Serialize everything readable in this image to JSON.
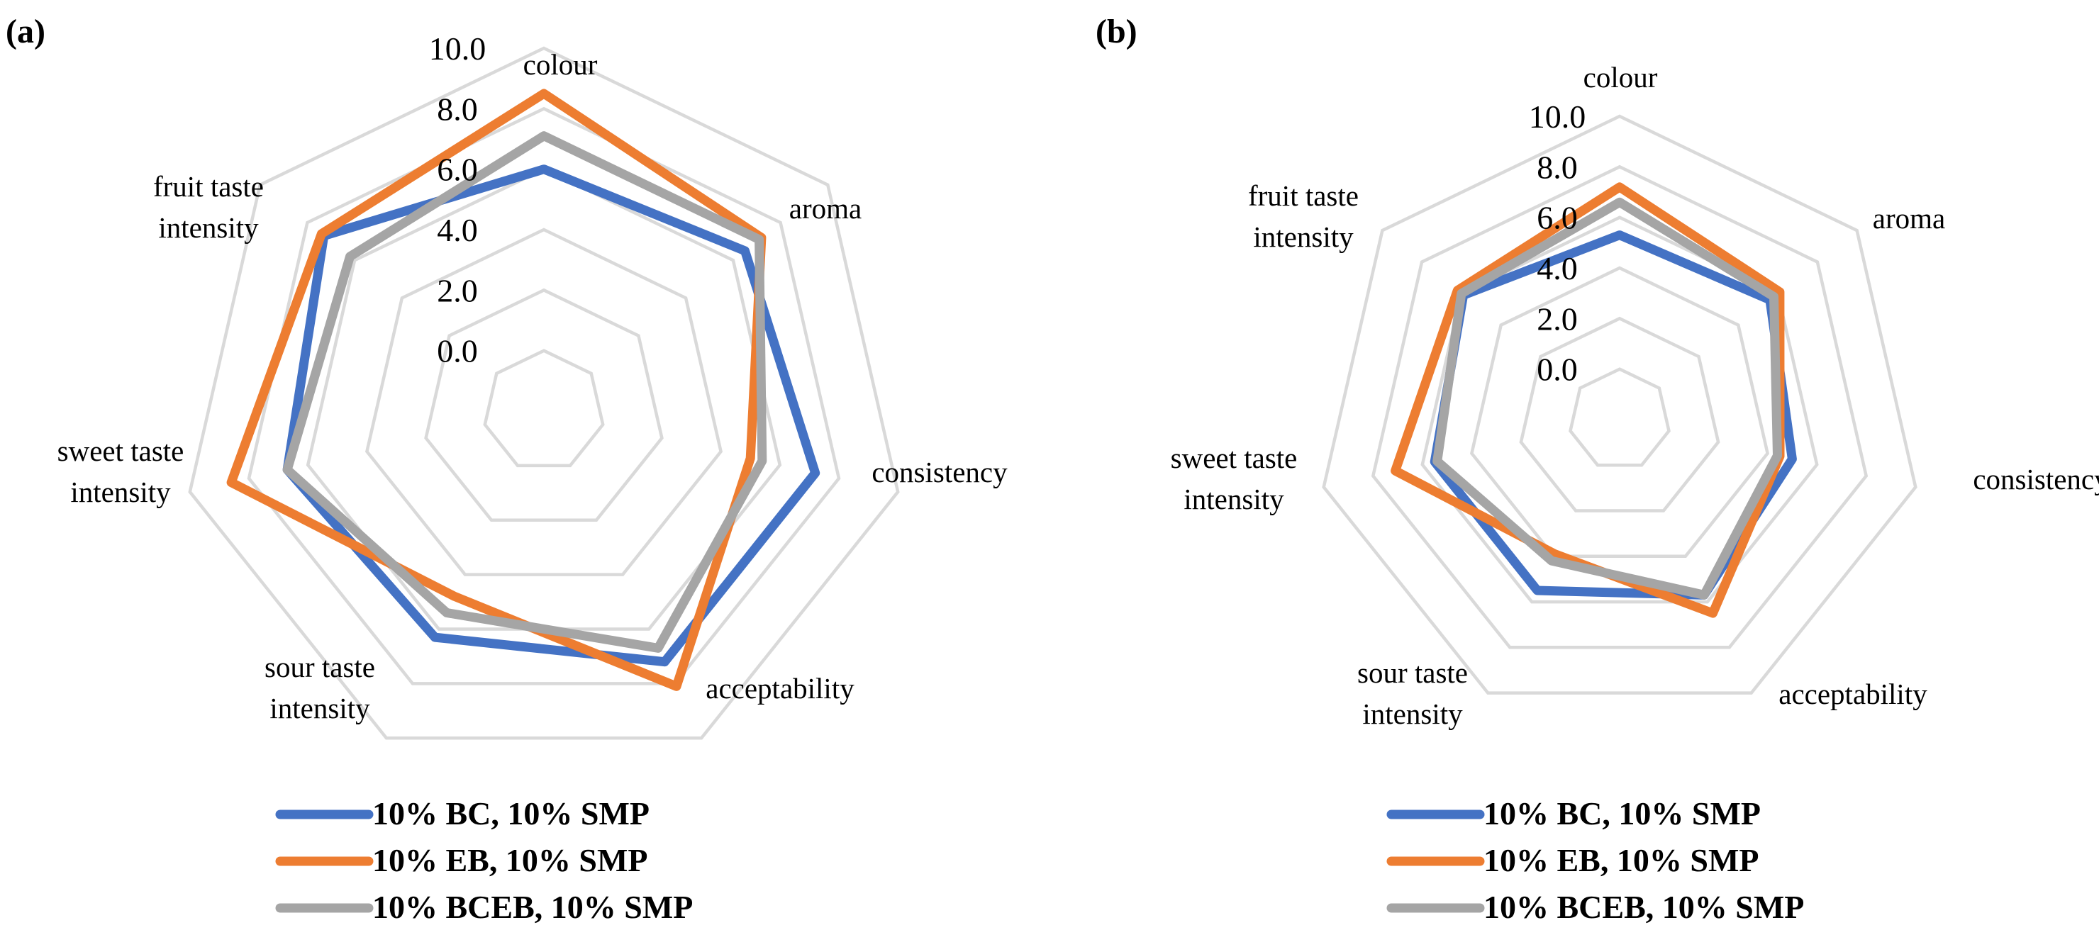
{
  "chart_data": [
    {
      "type": "radar",
      "panel_label": "(a)",
      "axes": [
        "colour",
        "aroma",
        "consistency",
        "acceptability",
        "sour taste intensity",
        "sweet taste intensity",
        "fruit taste intensity"
      ],
      "axis_label_lines": [
        [
          "colour"
        ],
        [
          "aroma"
        ],
        [
          "consistency"
        ],
        [
          "acceptability"
        ],
        [
          "sour taste",
          "intensity"
        ],
        [
          "sweet taste",
          "intensity"
        ],
        [
          "fruit taste",
          "intensity"
        ]
      ],
      "ticks": [
        "0.0",
        "2.0",
        "4.0",
        "6.0",
        "8.0",
        "10.0"
      ],
      "rmin": -2,
      "rmax": 10,
      "grid": true,
      "legend_position": "bottom",
      "series": [
        {
          "name": "10% BC, 10% SMP",
          "color": "#4472c4",
          "values": [
            6.0,
            6.5,
            7.2,
            7.2,
            6.3,
            6.7,
            7.3
          ]
        },
        {
          "name": "10% EB, 10% SMP",
          "color": "#ed7d31",
          "values": [
            8.5,
            7.2,
            5.0,
            8.1,
            4.8,
            8.6,
            7.4
          ]
        },
        {
          "name": "10% BCEB, 10% SMP",
          "color": "#a5a5a5",
          "values": [
            7.1,
            7.1,
            5.4,
            6.7,
            5.4,
            6.7,
            6.2
          ]
        }
      ]
    },
    {
      "type": "radar",
      "panel_label": "(b)",
      "axes": [
        "colour",
        "aroma",
        "consistency",
        "acceptability",
        "sour taste intensity",
        "sweet taste intensity",
        "fruit taste intensity"
      ],
      "axis_label_lines": [
        [
          "colour"
        ],
        [
          "aroma"
        ],
        [
          "consistency"
        ],
        [
          "acceptability"
        ],
        [
          "sour taste",
          "intensity"
        ],
        [
          "sweet taste",
          "intensity"
        ],
        [
          "fruit taste",
          "intensity"
        ]
      ],
      "ticks": [
        "0.0",
        "2.0",
        "4.0",
        "6.0",
        "8.0",
        "10.0"
      ],
      "rmin": -2,
      "rmax": 10,
      "grid": true,
      "legend_position": "bottom",
      "series": [
        {
          "name": "10% BC, 10% SMP",
          "color": "#4472c4",
          "values": [
            5.3,
            5.6,
            5.0,
            5.7,
            5.5,
            5.5,
            5.9
          ]
        },
        {
          "name": "10% EB, 10% SMP",
          "color": "#ed7d31",
          "values": [
            7.2,
            6.1,
            4.5,
            6.5,
            3.9,
            7.1,
            6.2
          ]
        },
        {
          "name": "10% BCEB, 10% SMP",
          "color": "#a5a5a5",
          "values": [
            6.6,
            5.8,
            4.4,
            5.7,
            4.2,
            5.4,
            6.0
          ]
        }
      ]
    }
  ]
}
